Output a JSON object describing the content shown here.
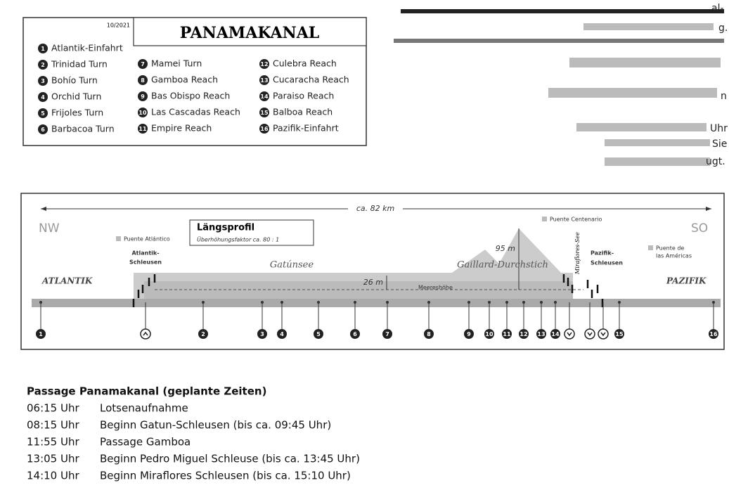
{
  "legend": {
    "date": "10/2021",
    "title": "PANAMAKANAL",
    "items": [
      {
        "num": "1",
        "label": "Atlantik-Einfahrt"
      },
      {
        "num": "2",
        "label": "Trinidad Turn"
      },
      {
        "num": "3",
        "label": "Bohío Turn"
      },
      {
        "num": "4",
        "label": "Orchid Turn"
      },
      {
        "num": "5",
        "label": "Frijoles Turn"
      },
      {
        "num": "6",
        "label": "Barbacoa Turn"
      },
      {
        "num": "7",
        "label": "Mamei Turn"
      },
      {
        "num": "8",
        "label": "Gamboa Reach"
      },
      {
        "num": "9",
        "label": "Bas Obispo Reach"
      },
      {
        "num": "10",
        "label": "Las Cascadas Reach"
      },
      {
        "num": "11",
        "label": "Empire Reach"
      },
      {
        "num": "12",
        "label": "Culebra Reach"
      },
      {
        "num": "13",
        "label": "Cucaracha Reach"
      },
      {
        "num": "14",
        "label": "Paraiso Reach"
      },
      {
        "num": "15",
        "label": "Balboa Reach"
      },
      {
        "num": "16",
        "label": "Pazifik-Einfahrt"
      }
    ]
  },
  "fragments": [
    "al-",
    "g.",
    "n",
    "Uhr",
    "Sie",
    "ugt."
  ],
  "profile": {
    "distance": "ca. 82 km",
    "west": "NW",
    "east": "SO",
    "title": "Längsprofil",
    "subtitle": "Überhöhungsfaktor ca. 80 : 1",
    "puente_atlantico": "Puente Atlántico",
    "atlantik_schleusen": [
      "Atlantik-",
      "Schleusen"
    ],
    "gatunsee": "Gatúnsee",
    "gaillard": "Gaillard-Durchstich",
    "puente_centenario": "Puente Centenario",
    "miraflores": "Miraflores-See",
    "pazifik_schleusen": [
      "Pazifik-",
      "Schleusen"
    ],
    "puente_americas": [
      "Puente de",
      "las Américas"
    ],
    "atlantik": "ATLANTIK",
    "pazifik": "PAZIFIK",
    "height_lake": "26 m",
    "height_peak": "95 m",
    "sea_level": "Meereshöhe"
  },
  "schedule": {
    "title": "Passage Panamakanal (geplante Zeiten)",
    "rows": [
      [
        "06:15 Uhr",
        "Lotsenaufnahme"
      ],
      [
        "08:15 Uhr",
        "Beginn Gatun-Schleusen (bis ca. 09:45 Uhr)"
      ],
      [
        "11:55 Uhr",
        "Passage Gamboa"
      ],
      [
        "13:05 Uhr",
        "Beginn Pedro Miguel Schleuse (bis ca. 13:45 Uhr)"
      ],
      [
        "14:10 Uhr",
        "Beginn Miraflores Schleusen (bis ca. 15:10 Uhr)"
      ]
    ]
  }
}
